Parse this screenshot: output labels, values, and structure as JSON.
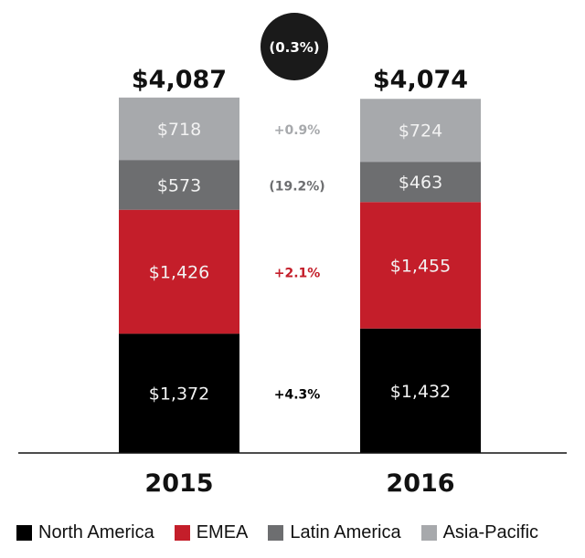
{
  "chart_data": {
    "type": "bar",
    "stacked": true,
    "title": "",
    "xlabel": "",
    "ylabel": "",
    "categories": [
      "2015",
      "2016"
    ],
    "totals": [
      {
        "value": 4087,
        "label": "$4,087"
      },
      {
        "value": 4074,
        "label": "$4,074"
      }
    ],
    "total_change": "(0.3%)",
    "series": [
      {
        "name": "North America",
        "color": "#000000",
        "label_color": "#000000",
        "values": [
          1372,
          1432
        ],
        "labels": [
          "$1,372",
          "$1,432"
        ],
        "change": "+4.3%"
      },
      {
        "name": "EMEA",
        "color": "#c41e2a",
        "label_color": "#c41e2a",
        "values": [
          1426,
          1455
        ],
        "labels": [
          "$1,426",
          "$1,455"
        ],
        "change": "+2.1%"
      },
      {
        "name": "Latin America",
        "color": "#6d6e70",
        "label_color": "#6d6e70",
        "values": [
          573,
          463
        ],
        "labels": [
          "$573",
          "$463"
        ],
        "change": "(19.2%)"
      },
      {
        "name": "Asia-Pacific",
        "color": "#a7a9ac",
        "label_color": "#a7a9ac",
        "values": [
          718,
          724
        ],
        "labels": [
          "$718",
          "$724"
        ],
        "change": "+0.9%"
      }
    ],
    "ylim": [
      0,
      4087
    ],
    "grid": false,
    "legend_position": "bottom"
  }
}
